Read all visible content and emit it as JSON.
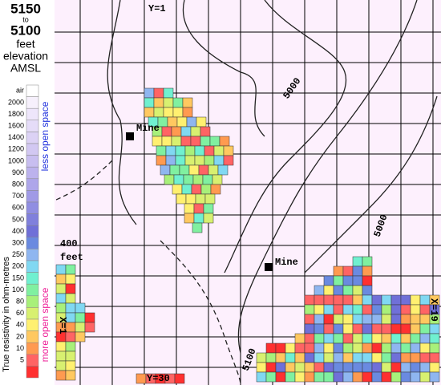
{
  "header": {
    "elevation_top": "5150",
    "to": "to",
    "elevation_bottom": "5100",
    "unit": "feet",
    "line1": "elevation",
    "line2": "AMSL"
  },
  "legend": {
    "title": "True resistivity in ohm-metres",
    "less": "less open space",
    "more": "more open space",
    "items": [
      {
        "label": "air",
        "color": "#ffffff"
      },
      {
        "label": "2000",
        "color": "#f6f0fc"
      },
      {
        "label": "1800",
        "color": "#eee6fb"
      },
      {
        "label": "1600",
        "color": "#e5dcf8"
      },
      {
        "label": "1400",
        "color": "#dcd2f5"
      },
      {
        "label": "1200",
        "color": "#d2c8f2"
      },
      {
        "label": "1000",
        "color": "#c8bef0"
      },
      {
        "label": "900",
        "color": "#bcb2ed"
      },
      {
        "label": "800",
        "color": "#aea6ea"
      },
      {
        "label": "700",
        "color": "#a09ae6"
      },
      {
        "label": "600",
        "color": "#908ee2"
      },
      {
        "label": "500",
        "color": "#8080dc"
      },
      {
        "label": "400",
        "color": "#7070d8"
      },
      {
        "label": "300",
        "color": "#6a8ae0"
      },
      {
        "label": "250",
        "color": "#8fb6f0"
      },
      {
        "label": "200",
        "color": "#80d8f2"
      },
      {
        "label": "150",
        "color": "#70f0d0"
      },
      {
        "label": "100",
        "color": "#80f0a0"
      },
      {
        "label": "80",
        "color": "#a8f07a"
      },
      {
        "label": "60",
        "color": "#d8f070"
      },
      {
        "label": "40",
        "color": "#fff070"
      },
      {
        "label": "20",
        "color": "#ffc860"
      },
      {
        "label": "10",
        "color": "#ff9a50"
      },
      {
        "label": "5",
        "color": "#ff6464"
      },
      {
        "label": null,
        "color": "#ff3030"
      }
    ]
  },
  "map": {
    "mine1": "Mine",
    "mine2": "Mine",
    "y_start": "Y=1",
    "y_end": "Y=30",
    "x_start": "X=1",
    "x_end": "X=19",
    "scale_value": "400",
    "scale_unit": "feet",
    "contour1": "5000",
    "contour2": "5000",
    "contour3": "5100"
  }
}
